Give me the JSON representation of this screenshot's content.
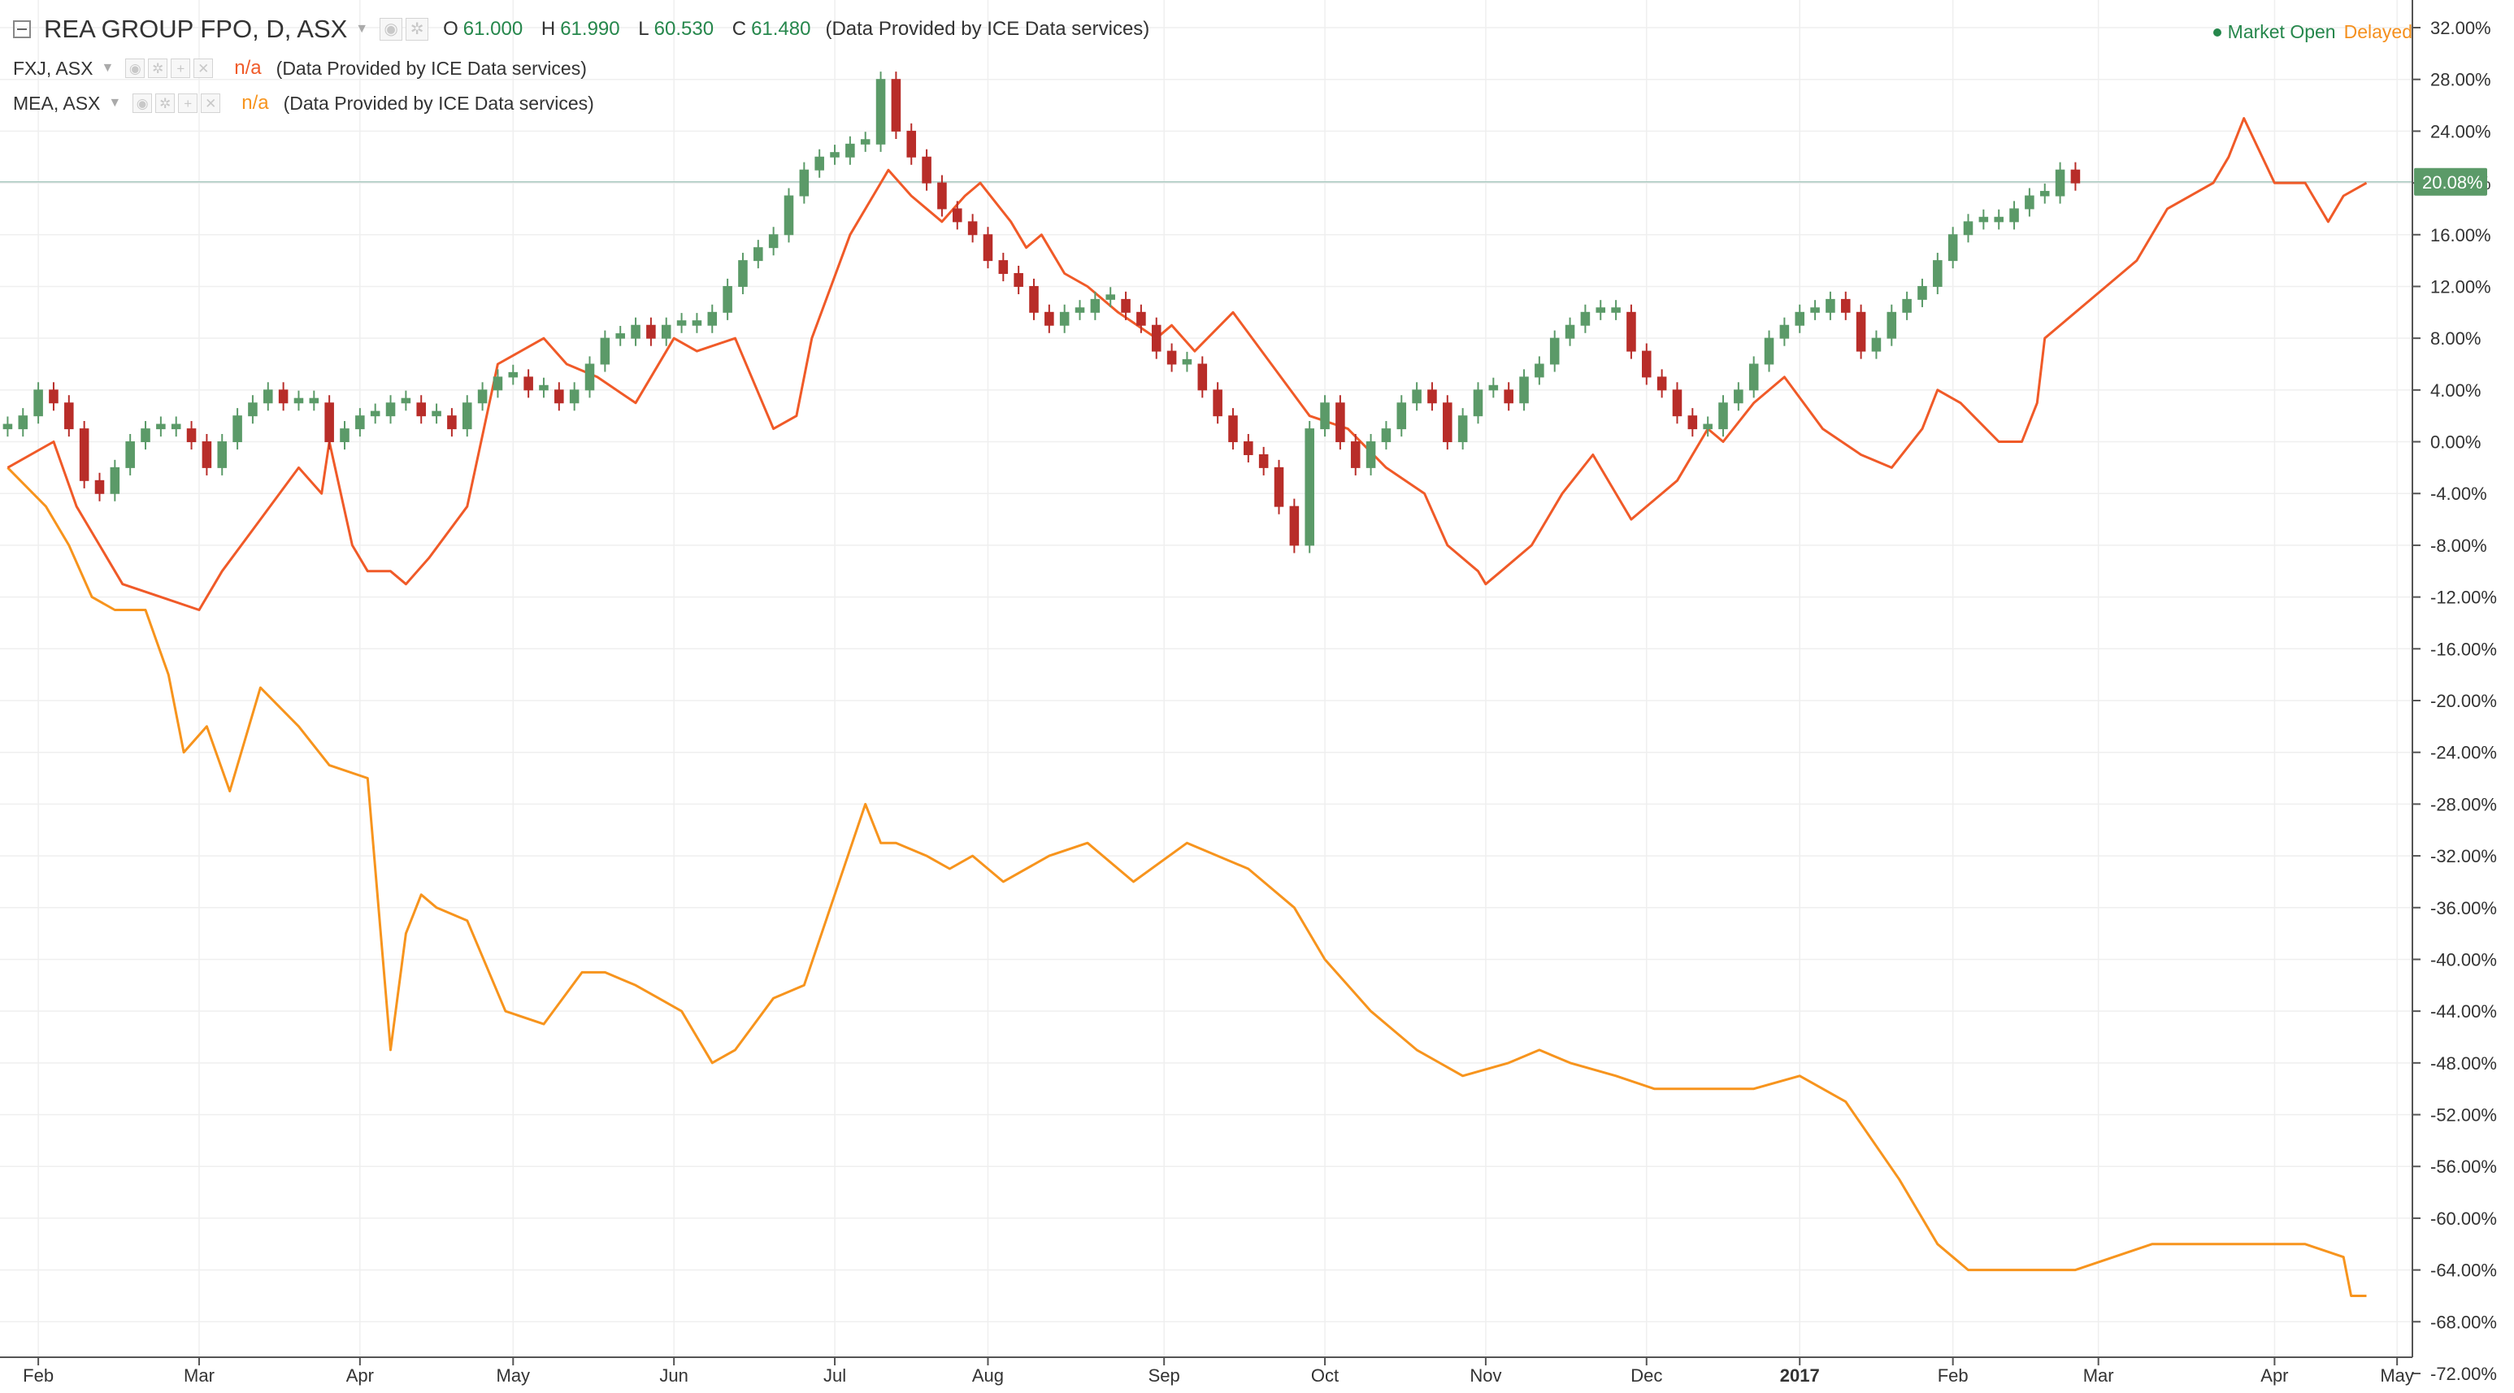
{
  "legend": {
    "main": {
      "symbol": "REA GROUP FPO, D, ASX",
      "ohlc": [
        {
          "label": "O",
          "value": "61.000"
        },
        {
          "label": "H",
          "value": "61.990"
        },
        {
          "label": "L",
          "value": "60.530"
        },
        {
          "label": "C",
          "value": "61.480"
        }
      ],
      "provider": "(Data Provided by ICE Data services)"
    },
    "comparisons": [
      {
        "symbol": "FXJ, ASX",
        "value": "n/a",
        "provider": "(Data Provided by ICE Data services)",
        "color": "#f05a28"
      },
      {
        "symbol": "MEA, ASX",
        "value": "n/a",
        "provider": "(Data Provided by ICE Data services)",
        "color": "#f7941d"
      }
    ]
  },
  "status": {
    "market": "Market Open",
    "delay": "Delayed"
  },
  "colors": {
    "up": "#5b9a68",
    "down": "#b82d29",
    "fxj": "#f05a28",
    "mea": "#f7941d",
    "grid": "#efefef",
    "badge": "#5b9a68"
  },
  "chart_data": {
    "type": "line",
    "x_unit": "trading day index (0 = early Feb 2016, 308 = ~1 May 2017)",
    "y_unit": "percent change",
    "ylim": [
      -72,
      32
    ],
    "y_ticks": [
      "32.00%",
      "28.00%",
      "24.00%",
      "20.00%",
      "16.00%",
      "12.00%",
      "8.00%",
      "4.00%",
      "0.00%",
      "-4.00%",
      "-8.00%",
      "-12.00%",
      "-16.00%",
      "-20.00%",
      "-24.00%",
      "-28.00%",
      "-32.00%",
      "-36.00%",
      "-40.00%",
      "-44.00%",
      "-48.00%",
      "-52.00%",
      "-56.00%",
      "-60.00%",
      "-64.00%",
      "-68.00%",
      "-72.00%"
    ],
    "x_ticks": [
      {
        "label": "Feb",
        "x": 4
      },
      {
        "label": "Mar",
        "x": 25
      },
      {
        "label": "Apr",
        "x": 46
      },
      {
        "label": "May",
        "x": 66
      },
      {
        "label": "Jun",
        "x": 87
      },
      {
        "label": "Jul",
        "x": 108
      },
      {
        "label": "Aug",
        "x": 128
      },
      {
        "label": "Sep",
        "x": 151
      },
      {
        "label": "Oct",
        "x": 172
      },
      {
        "label": "Nov",
        "x": 193
      },
      {
        "label": "Dec",
        "x": 214
      },
      {
        "label": "2017",
        "x": 234,
        "bold": true
      },
      {
        "label": "Feb",
        "x": 254
      },
      {
        "label": "Mar",
        "x": 273
      },
      {
        "label": "Apr",
        "x": 296
      },
      {
        "label": "May",
        "x": 312
      }
    ],
    "x_range": [
      -1,
      314
    ],
    "grid": true,
    "last_value_label": "20.08%",
    "last_value": 20.08,
    "series": [
      {
        "name": "REA GROUP FPO, D, ASX",
        "style": "candles",
        "x_step": 2,
        "close": [
          1,
          2,
          4,
          3,
          1,
          -3,
          -4,
          -2,
          0,
          1,
          1,
          1,
          0,
          -2,
          0,
          2,
          3,
          4,
          3,
          3,
          3,
          0,
          1,
          2,
          2,
          3,
          3,
          2,
          2,
          1,
          3,
          4,
          5,
          5,
          4,
          4,
          3,
          4,
          6,
          8,
          8,
          9,
          8,
          9,
          9,
          9,
          10,
          12,
          14,
          15,
          16,
          19,
          21,
          22,
          22,
          23,
          23,
          28,
          24,
          22,
          20,
          18,
          17,
          16,
          14,
          13,
          12,
          10,
          9,
          10,
          10,
          11,
          11,
          10,
          9,
          7,
          6,
          6,
          4,
          2,
          0,
          -1,
          -2,
          -5,
          -8,
          1,
          3,
          0,
          -2,
          0,
          1,
          3,
          4,
          3,
          0,
          2,
          4,
          4,
          3,
          5,
          6,
          8,
          9,
          10,
          10,
          10,
          7,
          5,
          4,
          2,
          1,
          1,
          3,
          4,
          6,
          8,
          9,
          10,
          10,
          11,
          10,
          7,
          8,
          10,
          11,
          12,
          14,
          16,
          17,
          17,
          17,
          18,
          19,
          19,
          21,
          20
        ]
      },
      {
        "name": "FXJ, ASX",
        "style": "line",
        "color": "#f05a28",
        "x": [
          0,
          6,
          9,
          12,
          15,
          20,
          25,
          28,
          33,
          38,
          41,
          42,
          45,
          47,
          50,
          52,
          55,
          60,
          64,
          70,
          73,
          77,
          82,
          87,
          90,
          95,
          100,
          103,
          105,
          110,
          114,
          115,
          118,
          122,
          125,
          127,
          131,
          133,
          135,
          138,
          141,
          145,
          150,
          152,
          155,
          160,
          165,
          170,
          175,
          180,
          185,
          188,
          192,
          193,
          195,
          199,
          203,
          207,
          212,
          218,
          222,
          224,
          228,
          232,
          237,
          242,
          246,
          250,
          252,
          255,
          260,
          263,
          265,
          266,
          270,
          274,
          278,
          282,
          288,
          290,
          292,
          296,
          300,
          303,
          305,
          308
        ],
        "y": [
          -2,
          0,
          -5,
          -8,
          -11,
          -12,
          -13,
          -10,
          -6,
          -2,
          -4,
          0,
          -8,
          -10,
          -10,
          -11,
          -9,
          -5,
          6,
          8,
          6,
          5,
          3,
          8,
          7,
          8,
          1,
          2,
          8,
          16,
          20,
          21,
          19,
          17,
          19,
          20,
          17,
          15,
          16,
          13,
          12,
          10,
          8,
          9,
          7,
          10,
          6,
          2,
          1,
          -2,
          -4,
          -8,
          -10,
          -11,
          -10,
          -8,
          -4,
          -1,
          -6,
          -3,
          1,
          0,
          3,
          5,
          1,
          -1,
          -2,
          1,
          4,
          3,
          0,
          0,
          3,
          8,
          10,
          12,
          14,
          18,
          20,
          22,
          25,
          20,
          20,
          17,
          19,
          20
        ]
      },
      {
        "name": "MEA, ASX",
        "style": "line",
        "color": "#f7941d",
        "x": [
          0,
          5,
          8,
          11,
          14,
          18,
          21,
          23,
          26,
          29,
          33,
          38,
          42,
          47,
          50,
          52,
          54,
          56,
          60,
          65,
          70,
          75,
          78,
          82,
          85,
          88,
          92,
          95,
          100,
          104,
          108,
          112,
          114,
          116,
          120,
          123,
          126,
          130,
          136,
          141,
          147,
          154,
          162,
          168,
          172,
          178,
          184,
          190,
          196,
          200,
          204,
          210,
          215,
          222,
          228,
          234,
          240,
          247,
          252,
          256,
          262,
          270,
          280,
          290,
          300,
          305,
          306,
          308
        ],
        "y": [
          -2,
          -5,
          -8,
          -12,
          -13,
          -13,
          -18,
          -24,
          -22,
          -27,
          -19,
          -22,
          -25,
          -26,
          -47,
          -38,
          -35,
          -36,
          -37,
          -44,
          -45,
          -41,
          -41,
          -42,
          -43,
          -44,
          -48,
          -47,
          -43,
          -42,
          -35,
          -28,
          -31,
          -31,
          -32,
          -33,
          -32,
          -34,
          -32,
          -31,
          -34,
          -31,
          -33,
          -36,
          -40,
          -44,
          -47,
          -49,
          -48,
          -47,
          -48,
          -49,
          -50,
          -50,
          -50,
          -49,
          -51,
          -57,
          -62,
          -64,
          -64,
          -64,
          -62,
          -62,
          -62,
          -63,
          -66,
          -66
        ]
      }
    ]
  }
}
